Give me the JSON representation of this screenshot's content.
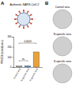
{
  "panel_labels": [
    "A",
    "B"
  ],
  "diagram": {
    "title": "Authentic SARS-CoV-2"
  },
  "wells": {
    "labels": [
      "Control sera",
      "N-specific sera",
      "S-specific sera"
    ]
  },
  "chart_data": {
    "type": "bar",
    "y_label": "PRNT50 (fold dilution)",
    "categories": [
      "Control sera",
      "N-specific sera",
      "S-specific sera"
    ],
    "values": [
      10,
      12,
      150
    ],
    "colors": [
      "#9e9e9e",
      "#5b8fd1",
      "#e8a33d"
    ],
    "ylim": [
      0,
      300
    ],
    "yticks": [
      0,
      100,
      200,
      300
    ],
    "grid": false,
    "annotations": [
      {
        "text": "ns",
        "between": [
          "Control sera",
          "N-specific sera"
        ]
      },
      {
        "text": "0.0024",
        "between": [
          "Control sera",
          "S-specific sera"
        ]
      }
    ]
  }
}
